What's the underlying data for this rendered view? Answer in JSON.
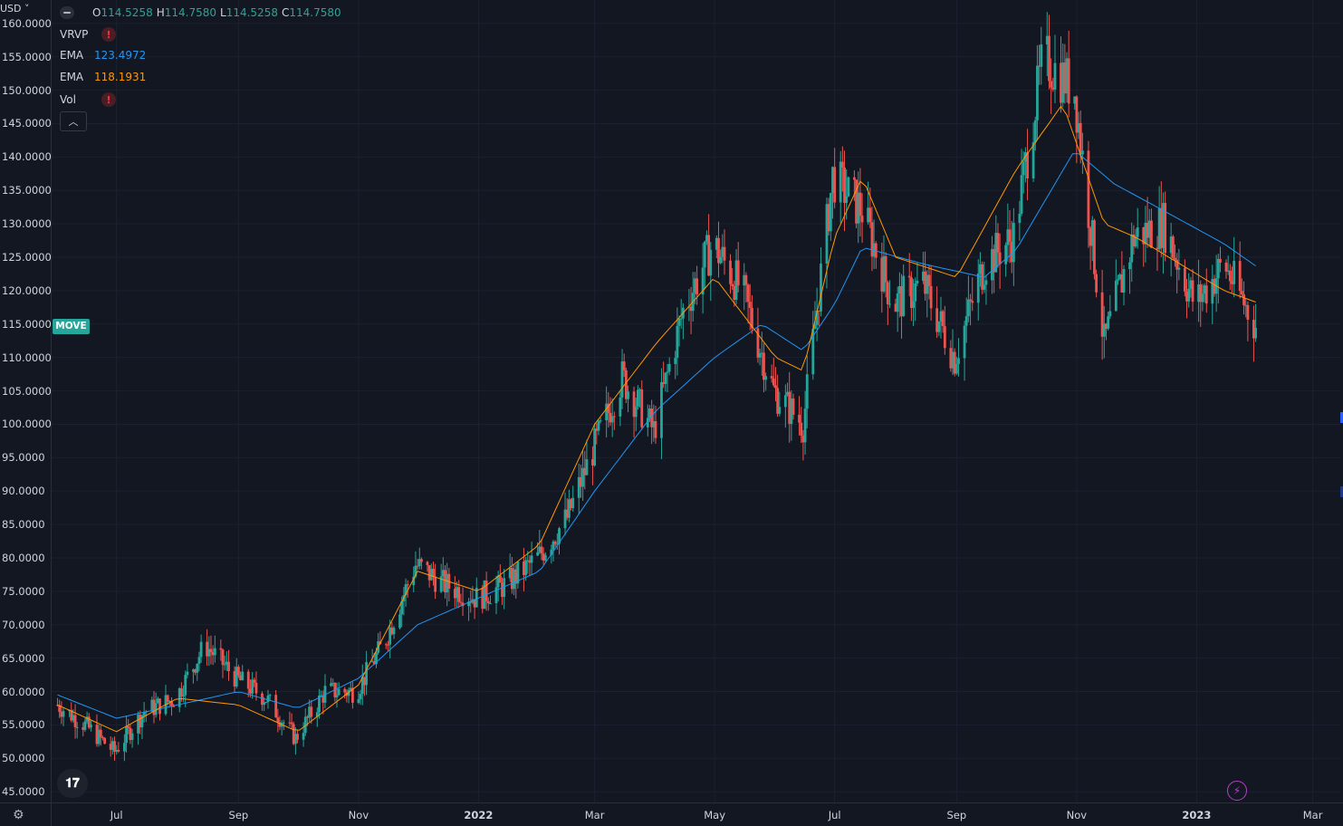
{
  "toolbar": {
    "currency": "USD"
  },
  "legend": {
    "ohlc": {
      "o_label": "O",
      "o": "114.5258",
      "h_label": "H",
      "h": "114.7580",
      "l_label": "L",
      "l": "114.5258",
      "c_label": "C",
      "c": "114.7580"
    },
    "indicators": [
      {
        "name": "VRVP",
        "value": "",
        "warning": "!"
      },
      {
        "name": "EMA",
        "value": "123.4972",
        "color": "#2196f3"
      },
      {
        "name": "EMA",
        "value": "118.1931",
        "color": "#ff9800"
      },
      {
        "name": "Vol",
        "value": "",
        "warning": "!"
      }
    ],
    "collapse_icon": "chevron-up-icon"
  },
  "price_tag": {
    "label": "MOVE"
  },
  "colors": {
    "up": "#26a69a",
    "down": "#ef5350",
    "ema_long": "#2196f3",
    "ema_short": "#ff9800",
    "background": "#131722"
  },
  "chart_data": {
    "type": "candlestick",
    "y_ticks": [
      "160.0000",
      "155.0000",
      "150.0000",
      "145.0000",
      "140.0000",
      "135.0000",
      "130.0000",
      "125.0000",
      "120.0000",
      "115.0000",
      "110.0000",
      "105.0000",
      "100.0000",
      "95.0000",
      "90.0000",
      "85.0000",
      "80.0000",
      "75.0000",
      "70.0000",
      "65.0000",
      "60.0000",
      "55.0000",
      "50.0000",
      "45.0000"
    ],
    "x_ticks": [
      {
        "label": "Jul",
        "date": "2021-07-01",
        "bold": false
      },
      {
        "label": "Sep",
        "date": "2021-09-01",
        "bold": false
      },
      {
        "label": "Nov",
        "date": "2021-11-01",
        "bold": false
      },
      {
        "label": "2022",
        "date": "2022-01-01",
        "bold": true
      },
      {
        "label": "Mar",
        "date": "2022-03-01",
        "bold": false
      },
      {
        "label": "May",
        "date": "2022-05-01",
        "bold": false
      },
      {
        "label": "Jul",
        "date": "2022-07-01",
        "bold": false
      },
      {
        "label": "Sep",
        "date": "2022-09-01",
        "bold": false
      },
      {
        "label": "Nov",
        "date": "2022-11-01",
        "bold": false
      },
      {
        "label": "2023",
        "date": "2023-01-01",
        "bold": true
      },
      {
        "label": "Mar",
        "date": "2023-03-01",
        "bold": false
      }
    ],
    "x_range": [
      "2021-05-29",
      "2023-03-15"
    ],
    "ylim": [
      43.4,
      163.5
    ],
    "series": [
      {
        "name": "MOVE",
        "kind": "close",
        "points": [
          [
            "2021-06-01",
            58
          ],
          [
            "2021-06-15",
            55
          ],
          [
            "2021-06-30",
            51
          ],
          [
            "2021-07-15",
            57
          ],
          [
            "2021-07-31",
            59
          ],
          [
            "2021-08-15",
            67
          ],
          [
            "2021-08-31",
            62
          ],
          [
            "2021-09-15",
            59
          ],
          [
            "2021-09-30",
            53
          ],
          [
            "2021-10-15",
            60
          ],
          [
            "2021-10-31",
            60
          ],
          [
            "2021-11-15",
            68
          ],
          [
            "2021-11-30",
            79
          ],
          [
            "2021-12-15",
            76
          ],
          [
            "2021-12-31",
            74
          ],
          [
            "2022-01-15",
            76
          ],
          [
            "2022-01-31",
            80
          ],
          [
            "2022-02-15",
            86
          ],
          [
            "2022-02-28",
            96
          ],
          [
            "2022-03-15",
            107
          ],
          [
            "2022-03-31",
            99
          ],
          [
            "2022-04-15",
            117
          ],
          [
            "2022-04-30",
            127
          ],
          [
            "2022-05-15",
            120
          ],
          [
            "2022-05-31",
            105
          ],
          [
            "2022-06-15",
            100
          ],
          [
            "2022-06-30",
            137
          ],
          [
            "2022-07-15",
            132
          ],
          [
            "2022-07-31",
            118
          ],
          [
            "2022-08-15",
            121
          ],
          [
            "2022-08-31",
            110
          ],
          [
            "2022-09-15",
            124
          ],
          [
            "2022-09-30",
            128
          ],
          [
            "2022-10-15",
            155
          ],
          [
            "2022-10-31",
            150
          ],
          [
            "2022-11-15",
            112
          ],
          [
            "2022-11-30",
            128
          ],
          [
            "2022-12-15",
            130
          ],
          [
            "2022-12-31",
            118
          ],
          [
            "2023-01-15",
            124
          ],
          [
            "2023-01-31",
            114.758
          ]
        ]
      },
      {
        "name": "EMA",
        "kind": "ema_long",
        "points": [
          [
            "2021-06-01",
            59.5
          ],
          [
            "2021-07-01",
            56
          ],
          [
            "2021-08-01",
            58
          ],
          [
            "2021-09-01",
            60
          ],
          [
            "2021-10-01",
            57.5
          ],
          [
            "2021-11-01",
            62
          ],
          [
            "2021-12-01",
            70
          ],
          [
            "2022-01-01",
            74
          ],
          [
            "2022-02-01",
            78
          ],
          [
            "2022-03-01",
            90
          ],
          [
            "2022-04-01",
            102
          ],
          [
            "2022-05-01",
            110
          ],
          [
            "2022-05-25",
            115
          ],
          [
            "2022-06-15",
            111
          ],
          [
            "2022-07-01",
            118
          ],
          [
            "2022-07-15",
            126.5
          ],
          [
            "2022-08-15",
            124
          ],
          [
            "2022-09-15",
            122
          ],
          [
            "2022-10-01",
            126
          ],
          [
            "2022-10-31",
            141
          ],
          [
            "2022-11-20",
            136
          ],
          [
            "2022-12-15",
            132
          ],
          [
            "2023-01-15",
            127
          ],
          [
            "2023-02-01",
            123.4972
          ]
        ]
      },
      {
        "name": "EMA",
        "kind": "ema_short",
        "points": [
          [
            "2021-06-01",
            58
          ],
          [
            "2021-07-01",
            54
          ],
          [
            "2021-08-01",
            59
          ],
          [
            "2021-09-01",
            58
          ],
          [
            "2021-10-01",
            54
          ],
          [
            "2021-11-01",
            61
          ],
          [
            "2021-12-01",
            78
          ],
          [
            "2022-01-01",
            75
          ],
          [
            "2022-02-01",
            82
          ],
          [
            "2022-03-01",
            100
          ],
          [
            "2022-04-01",
            112
          ],
          [
            "2022-05-01",
            122
          ],
          [
            "2022-06-01",
            110
          ],
          [
            "2022-06-15",
            108
          ],
          [
            "2022-07-01",
            128
          ],
          [
            "2022-07-15",
            137
          ],
          [
            "2022-08-01",
            125
          ],
          [
            "2022-09-01",
            122
          ],
          [
            "2022-10-01",
            138
          ],
          [
            "2022-10-25",
            148
          ],
          [
            "2022-11-15",
            130
          ],
          [
            "2022-12-01",
            128
          ],
          [
            "2023-01-15",
            120
          ],
          [
            "2023-02-01",
            118.1931
          ]
        ]
      }
    ]
  }
}
